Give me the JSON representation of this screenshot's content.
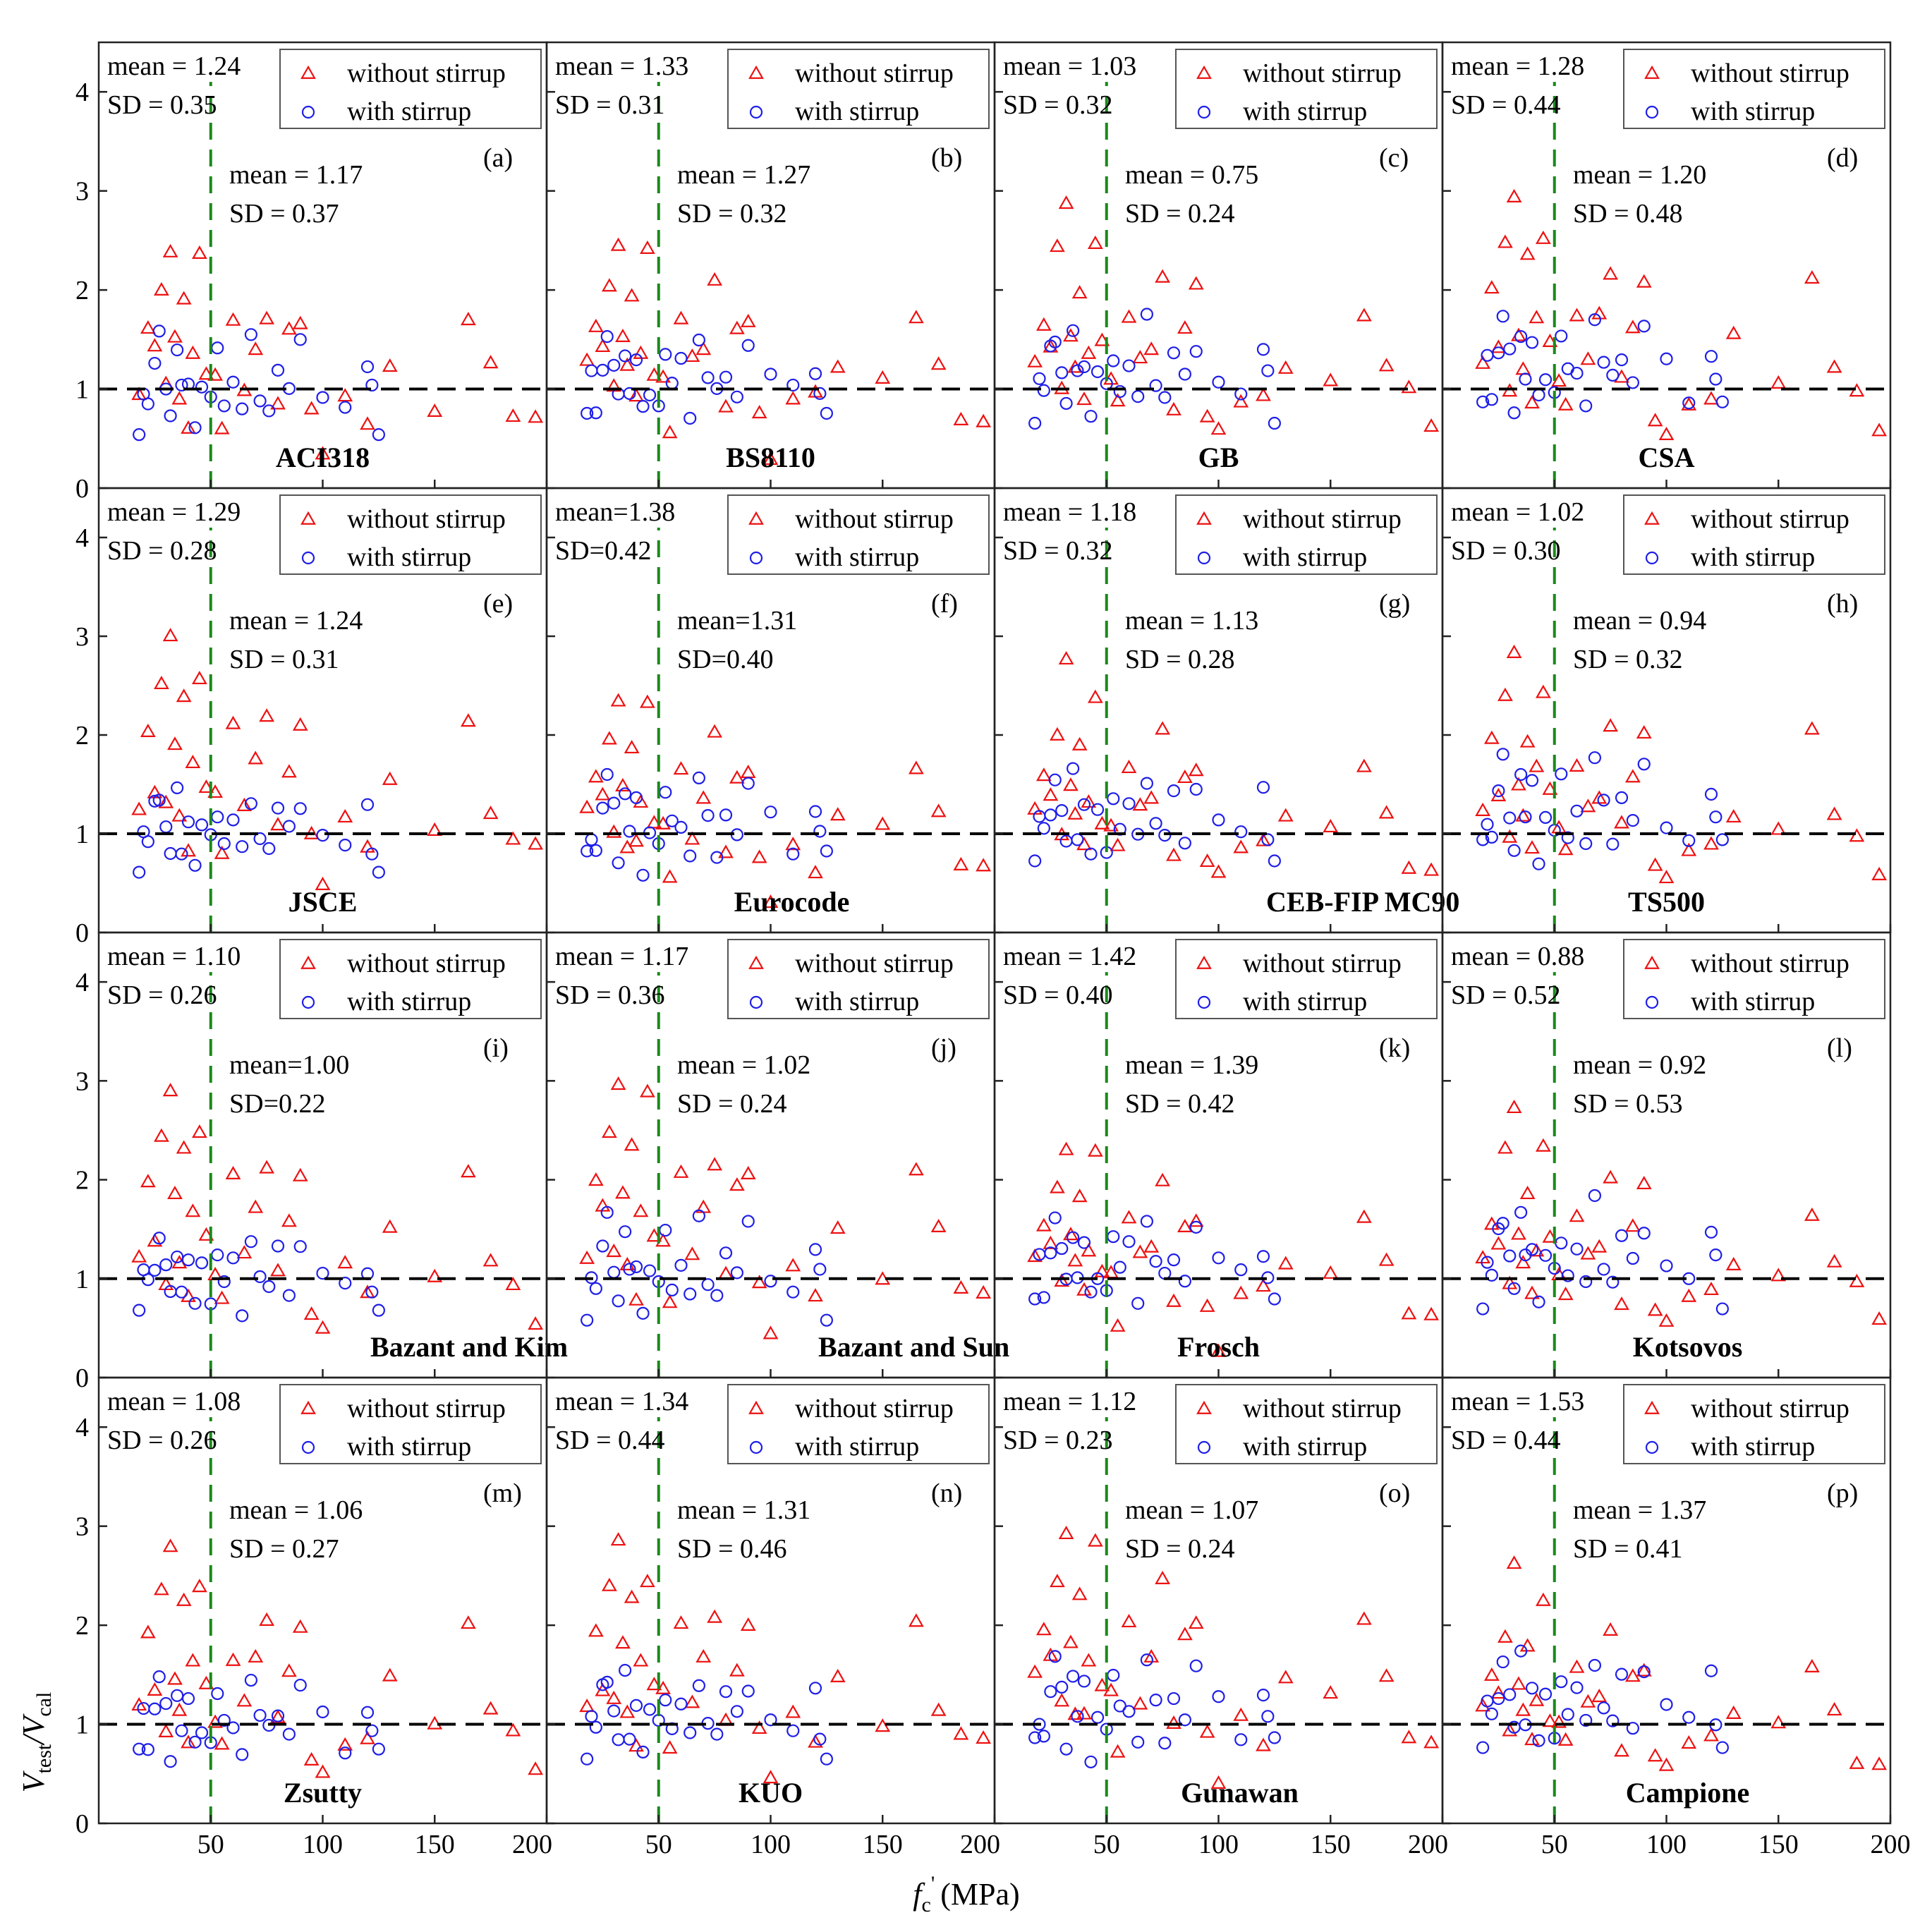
{
  "chart_data": {
    "type": "scatter",
    "layout": "4x4 grid of panels",
    "xlabel": "f",
    "xlabel_sub": "c",
    "xlabel_sup": "'",
    "xlabel_unit": "(MPa)",
    "ylabel": "V",
    "ylabel_sub1": "test",
    "ylabel_sep": "/V",
    "ylabel_sub2": "cal",
    "xlim": [
      0,
      200
    ],
    "ylim": [
      0,
      4.5
    ],
    "xticks": [
      50,
      100,
      150,
      200
    ],
    "yticks": [
      0,
      1,
      2,
      3,
      4
    ],
    "reference_y": 1,
    "strength_limit_x": 50,
    "legend": {
      "without_stirrup": "without stirrup",
      "with_stirrup": "with stirrup"
    },
    "panels": [
      {
        "label": "(a)",
        "code": "ACI318",
        "no_stirrup": {
          "mean": "mean = 1.24",
          "sd": "SD = 0.35"
        },
        "stirrup": {
          "mean": "mean = 1.17",
          "sd": "SD = 0.37"
        }
      },
      {
        "label": "(b)",
        "code": "BS8110",
        "no_stirrup": {
          "mean": "mean = 1.33",
          "sd": "SD = 0.31"
        },
        "stirrup": {
          "mean": "mean = 1.27",
          "sd": "SD = 0.32"
        }
      },
      {
        "label": "(c)",
        "code": "GB",
        "no_stirrup": {
          "mean": "mean = 1.03",
          "sd": "SD = 0.32"
        },
        "stirrup": {
          "mean": "mean = 0.75",
          "sd": "SD = 0.24"
        }
      },
      {
        "label": "(d)",
        "code": "CSA",
        "no_stirrup": {
          "mean": "mean = 1.28",
          "sd": "SD = 0.44"
        },
        "stirrup": {
          "mean": "mean = 1.20",
          "sd": "SD = 0.48"
        }
      },
      {
        "label": "(e)",
        "code": "JSCE",
        "no_stirrup": {
          "mean": "mean = 1.29",
          "sd": "SD = 0.28"
        },
        "stirrup": {
          "mean": "mean = 1.24",
          "sd": "SD = 0.31"
        }
      },
      {
        "label": "(f)",
        "code": "Eurocode",
        "no_stirrup": {
          "mean": "mean=1.38",
          "sd": "SD=0.42"
        },
        "stirrup": {
          "mean": "mean=1.31",
          "sd": "SD=0.40"
        }
      },
      {
        "label": "(g)",
        "code": "CEB-FIP MC90",
        "no_stirrup": {
          "mean": "mean = 1.18",
          "sd": "SD = 0.32"
        },
        "stirrup": {
          "mean": "mean = 1.13",
          "sd": "SD = 0.28"
        }
      },
      {
        "label": "(h)",
        "code": "TS500",
        "no_stirrup": {
          "mean": "mean = 1.02",
          "sd": "SD = 0.30"
        },
        "stirrup": {
          "mean": "mean = 0.94",
          "sd": "SD = 0.32"
        }
      },
      {
        "label": "(i)",
        "code": "Bazant and Kim",
        "no_stirrup": {
          "mean": "mean = 1.10",
          "sd": "SD = 0.26"
        },
        "stirrup": {
          "mean": "mean=1.00",
          "sd": "SD=0.22"
        }
      },
      {
        "label": "(j)",
        "code": "Bazant and Sun",
        "no_stirrup": {
          "mean": "mean = 1.17",
          "sd": "SD = 0.36"
        },
        "stirrup": {
          "mean": "mean = 1.02",
          "sd": "SD = 0.24"
        }
      },
      {
        "label": "(k)",
        "code": "Frosch",
        "no_stirrup": {
          "mean": "mean = 1.42",
          "sd": "SD = 0.40"
        },
        "stirrup": {
          "mean": "mean = 1.39",
          "sd": "SD = 0.42"
        }
      },
      {
        "label": "(l)",
        "code": "Kotsovos",
        "no_stirrup": {
          "mean": "mean = 0.88",
          "sd": "SD = 0.52"
        },
        "stirrup": {
          "mean": "mean = 0.92",
          "sd": "SD = 0.53"
        }
      },
      {
        "label": "(m)",
        "code": "Zsutty",
        "no_stirrup": {
          "mean": "mean = 1.08",
          "sd": "SD = 0.26"
        },
        "stirrup": {
          "mean": "mean = 1.06",
          "sd": "SD = 0.27"
        }
      },
      {
        "label": "(n)",
        "code": "KUO",
        "no_stirrup": {
          "mean": "mean = 1.34",
          "sd": "SD = 0.44"
        },
        "stirrup": {
          "mean": "mean = 1.31",
          "sd": "SD = 0.46"
        }
      },
      {
        "label": "(o)",
        "code": "Gunawan",
        "no_stirrup": {
          "mean": "mean = 1.12",
          "sd": "SD = 0.23"
        },
        "stirrup": {
          "mean": "mean = 1.07",
          "sd": "SD = 0.24"
        }
      },
      {
        "label": "(p)",
        "code": "Campione",
        "no_stirrup": {
          "mean": "mean = 1.53",
          "sd": "SD = 0.44"
        },
        "stirrup": {
          "mean": "mean = 1.37",
          "sd": "SD = 0.41"
        }
      }
    ],
    "representative_points": {
      "without_stirrup": [
        [
          18,
          1.3
        ],
        [
          22,
          1.9
        ],
        [
          25,
          1.5
        ],
        [
          28,
          2.4
        ],
        [
          30,
          1.1
        ],
        [
          32,
          2.9
        ],
        [
          34,
          1.7
        ],
        [
          36,
          1.2
        ],
        [
          38,
          2.2
        ],
        [
          40,
          0.9
        ],
        [
          42,
          1.6
        ],
        [
          45,
          2.6
        ],
        [
          48,
          1.4
        ],
        [
          52,
          1.2
        ],
        [
          55,
          0.8
        ],
        [
          60,
          1.9
        ],
        [
          65,
          1.3
        ],
        [
          70,
          1.6
        ],
        [
          75,
          2.2
        ],
        [
          80,
          1.0
        ],
        [
          85,
          1.7
        ],
        [
          90,
          2.0
        ],
        [
          95,
          0.8
        ],
        [
          100,
          0.5
        ],
        [
          110,
          1.0
        ],
        [
          120,
          0.9
        ],
        [
          130,
          1.4
        ],
        [
          150,
          1.1
        ],
        [
          165,
          2.0
        ],
        [
          175,
          1.3
        ],
        [
          185,
          0.9
        ],
        [
          195,
          0.7
        ]
      ],
      "with_stirrup": [
        [
          18,
          0.8
        ],
        [
          20,
          1.2
        ],
        [
          22,
          1.0
        ],
        [
          25,
          1.4
        ],
        [
          27,
          1.7
        ],
        [
          30,
          1.3
        ],
        [
          32,
          0.9
        ],
        [
          35,
          1.6
        ],
        [
          37,
          1.1
        ],
        [
          40,
          1.4
        ],
        [
          43,
          0.8
        ],
        [
          46,
          1.2
        ],
        [
          50,
          1.0
        ],
        [
          53,
          1.5
        ],
        [
          56,
          1.1
        ],
        [
          60,
          1.3
        ],
        [
          64,
          0.9
        ],
        [
          68,
          1.7
        ],
        [
          72,
          1.2
        ],
        [
          76,
          1.0
        ],
        [
          80,
          1.4
        ],
        [
          85,
          1.1
        ],
        [
          90,
          1.6
        ],
        [
          100,
          1.2
        ],
        [
          110,
          1.0
        ],
        [
          120,
          1.4
        ],
        [
          122,
          1.1
        ],
        [
          125,
          0.8
        ]
      ]
    }
  }
}
